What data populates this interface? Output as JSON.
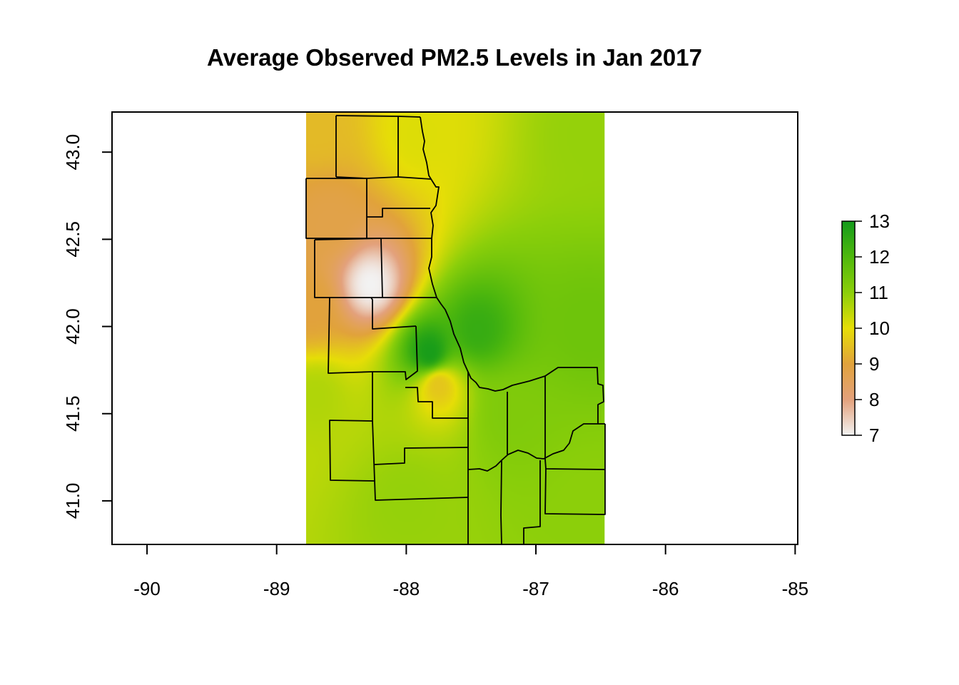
{
  "title": "Average Observed PM2.5 Levels in Jan 2017",
  "chart_data": {
    "type": "heatmap",
    "title": "Average Observed PM2.5 Levels in Jan 2017",
    "xlabel": "",
    "ylabel": "",
    "xlim": [
      -90.27,
      -84.98
    ],
    "ylim": [
      40.75,
      43.23
    ],
    "x_ticks": [
      "-90",
      "-89",
      "-88",
      "-87",
      "-86",
      "-85"
    ],
    "y_ticks": [
      "41.0",
      "41.5",
      "42.0",
      "42.5",
      "43.0"
    ],
    "raster_extent": {
      "lon": [
        -88.78,
        -86.47
      ],
      "lat": [
        40.75,
        43.23
      ]
    },
    "legend": {
      "placement": "right",
      "range": [
        7,
        13
      ],
      "ticks": [
        "7",
        "8",
        "9",
        "10",
        "11",
        "12",
        "13"
      ]
    },
    "colors": {
      "7": "#f2f2f2",
      "8": "#e3a17c",
      "9": "#e1a23c",
      "10": "#e6de07",
      "11": "#8ccf0a",
      "12": "#4fb80d",
      "13": "#139a1b"
    },
    "background_level": 10.9,
    "hotspots": [
      {
        "lon": -88.27,
        "lat": 42.24,
        "value": 7.0,
        "note": "minimum"
      },
      {
        "lon": -87.75,
        "lat": 41.66,
        "value": 9.6
      },
      {
        "lon": -87.82,
        "lat": 41.85,
        "value": 12.9,
        "note": "maximum"
      },
      {
        "lon": -87.45,
        "lat": 41.98,
        "value": 12.4
      }
    ]
  }
}
